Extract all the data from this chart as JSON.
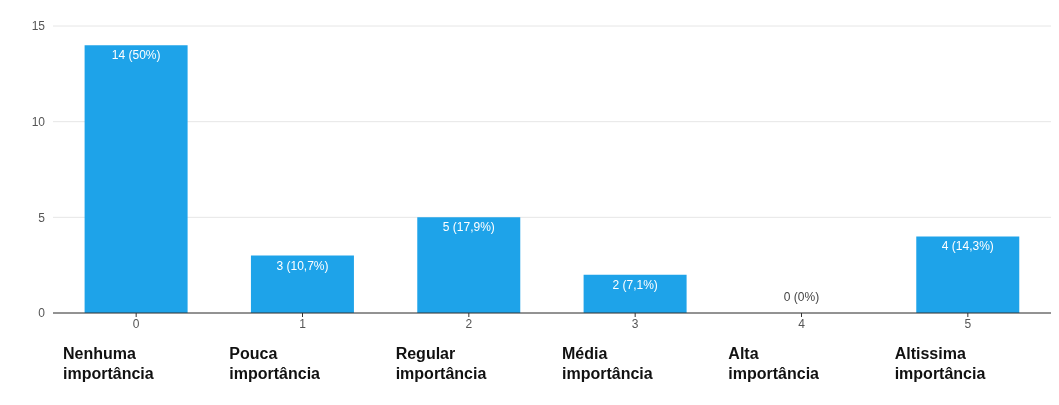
{
  "chart_data": {
    "type": "bar",
    "categories": [
      "0",
      "1",
      "2",
      "3",
      "4",
      "5"
    ],
    "values": [
      14,
      3,
      5,
      2,
      0,
      4
    ],
    "value_labels": [
      "14 (50%)",
      "3 (10,7%)",
      "5 (17,9%)",
      "2 (7,1%)",
      "0 (0%)",
      "4 (14,3%)"
    ],
    "color": "#1ea3e9",
    "ylim": [
      0,
      15
    ],
    "yticks": [
      0,
      5,
      10,
      15
    ],
    "grid": "y",
    "annotations": [
      "Nenhuma importância",
      "Pouca importância",
      "Regular importância",
      "Média importância",
      "Alta importância",
      "Altissima importância"
    ]
  }
}
